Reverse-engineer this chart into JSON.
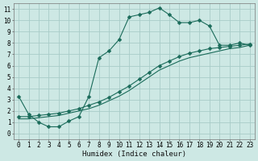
{
  "background_color": "#cde8e4",
  "grid_color": "#a8ccc8",
  "line_color": "#1a6b5a",
  "xlabel": "Humidex (Indice chaleur)",
  "xlim": [
    -0.5,
    23.5
  ],
  "ylim": [
    -0.5,
    11.5
  ],
  "xticks": [
    0,
    1,
    2,
    3,
    4,
    5,
    6,
    7,
    8,
    9,
    10,
    11,
    12,
    13,
    14,
    15,
    16,
    17,
    18,
    19,
    20,
    21,
    22,
    23
  ],
  "yticks": [
    0,
    1,
    2,
    3,
    4,
    5,
    6,
    7,
    8,
    9,
    10,
    11
  ],
  "line1_x": [
    0,
    1,
    2,
    3,
    4,
    5,
    6,
    7,
    8,
    9,
    10,
    11,
    12,
    13,
    14,
    15,
    16,
    17,
    18,
    19,
    20,
    21,
    22,
    23
  ],
  "line1_y": [
    3.3,
    1.7,
    1.0,
    0.6,
    0.6,
    1.1,
    1.5,
    3.3,
    6.7,
    7.3,
    8.3,
    10.3,
    10.5,
    10.7,
    11.1,
    10.5,
    9.8,
    9.8,
    10.0,
    9.5,
    7.8,
    7.8,
    8.0,
    7.8
  ],
  "line2_x": [
    0,
    1,
    2,
    3,
    4,
    5,
    6,
    7,
    8,
    9,
    10,
    11,
    12,
    13,
    14,
    15,
    16,
    17,
    18,
    19,
    20,
    21,
    22,
    23
  ],
  "line2_y": [
    1.5,
    1.5,
    1.6,
    1.7,
    1.8,
    2.0,
    2.2,
    2.5,
    2.8,
    3.2,
    3.7,
    4.2,
    4.8,
    5.4,
    6.0,
    6.4,
    6.8,
    7.1,
    7.3,
    7.5,
    7.6,
    7.7,
    7.8,
    7.9
  ],
  "line3_x": [
    0,
    1,
    2,
    3,
    4,
    5,
    6,
    7,
    8,
    9,
    10,
    11,
    12,
    13,
    14,
    15,
    16,
    17,
    18,
    19,
    20,
    21,
    22,
    23
  ],
  "line3_y": [
    1.3,
    1.3,
    1.4,
    1.5,
    1.6,
    1.8,
    2.0,
    2.2,
    2.5,
    2.9,
    3.3,
    3.8,
    4.4,
    5.0,
    5.6,
    6.0,
    6.4,
    6.7,
    6.9,
    7.1,
    7.3,
    7.5,
    7.6,
    7.8
  ],
  "marker_size": 2.5,
  "tick_fontsize": 5.5,
  "xlabel_fontsize": 6.5
}
